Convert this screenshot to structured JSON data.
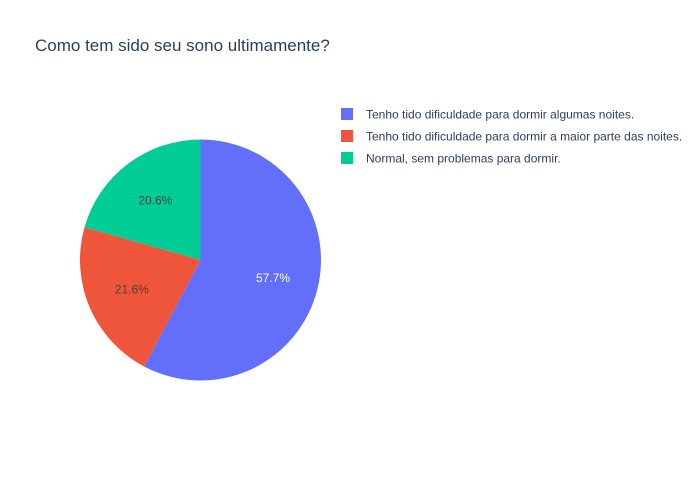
{
  "chart_data": {
    "type": "pie",
    "title": "Como tem sido seu sono ultimamente?",
    "categories": [
      "Tenho tido dificuldade para dormir algumas noites.",
      "Tenho tido dificuldade para dormir a maior parte das noites.",
      "Normal, sem problemas para dormir."
    ],
    "values": [
      57.7,
      21.6,
      20.6
    ],
    "labels": [
      "57.7%",
      "21.6%",
      "20.6%"
    ],
    "colors": [
      "#636efa",
      "#ef553b",
      "#00cc96"
    ],
    "label_colors": [
      "#ffffff",
      "#444444",
      "#444444"
    ],
    "legend_position": "top-right",
    "direction": "clockwise",
    "start": "top"
  }
}
